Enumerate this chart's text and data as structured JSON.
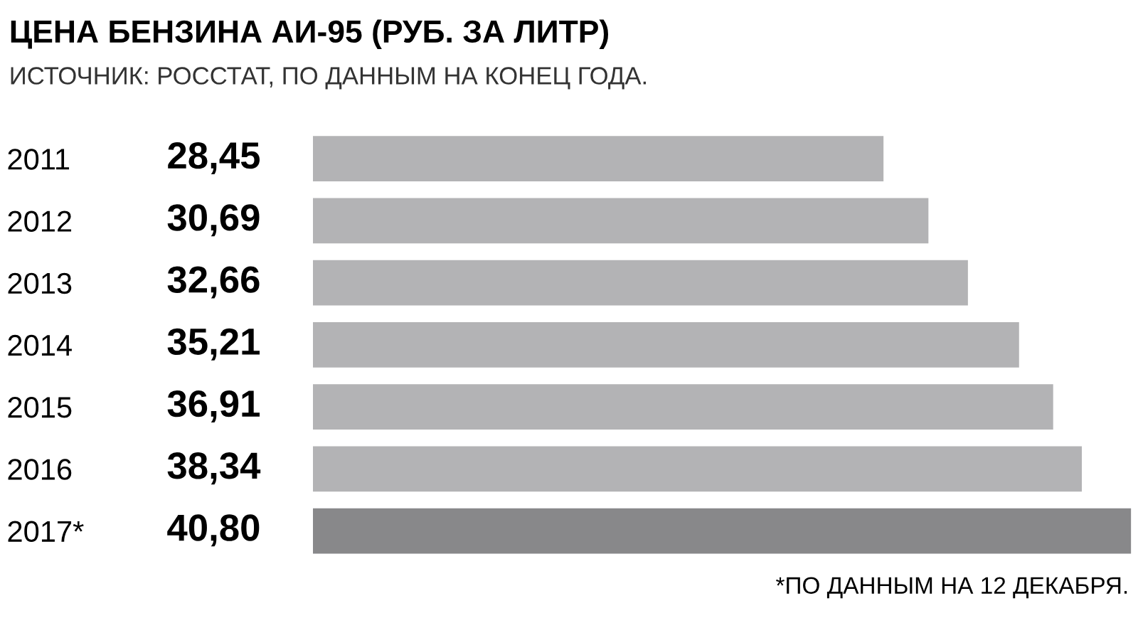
{
  "chart_data": {
    "type": "bar",
    "orientation": "horizontal",
    "title": "ЦЕНА БЕНЗИНА АИ-95 (РУБ. ЗА ЛИТР)",
    "subtitle": "ИСТОЧНИК: РОССТАТ, ПО ДАННЫМ НА КОНЕЦ ГОДА.",
    "categories": [
      "2011",
      "2012",
      "2013",
      "2014",
      "2015",
      "2016",
      "2017*"
    ],
    "values": [
      28.45,
      30.69,
      32.66,
      35.21,
      36.91,
      38.34,
      40.8
    ],
    "value_labels": [
      "28,45",
      "30,69",
      "32,66",
      "35,21",
      "36,91",
      "38,34",
      "40,80"
    ],
    "colors": [
      "#b3b3b5",
      "#b3b3b5",
      "#b3b3b5",
      "#b3b3b5",
      "#b3b3b5",
      "#b3b3b5",
      "#88888a"
    ],
    "xlim": [
      0,
      40.8
    ],
    "tick_labels": "y",
    "grid": false,
    "legend": false,
    "annotations": [
      "*ПО ДАННЫМ НА 12 ДЕКАБРЯ."
    ]
  }
}
